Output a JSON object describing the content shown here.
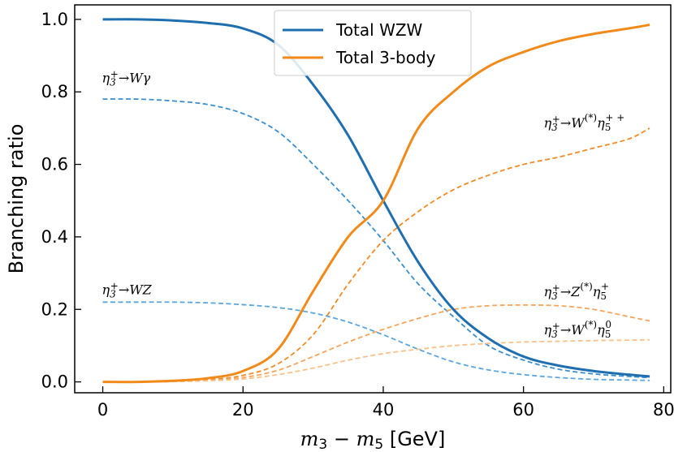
{
  "chart_data": {
    "type": "line",
    "xlabel": "m_3 − m_5 [GeV]",
    "ylabel": "Branching ratio",
    "xlim": [
      -4,
      81
    ],
    "ylim": [
      -0.03,
      1.04
    ],
    "xticks": [
      0,
      20,
      40,
      60,
      80
    ],
    "yticks": [
      0.0,
      0.2,
      0.4,
      0.6,
      0.8,
      1.0
    ],
    "ytick_labels": [
      "0.0",
      "0.2",
      "0.4",
      "0.6",
      "0.8",
      "1.0"
    ],
    "legend": {
      "placement": "top-center",
      "entries": [
        "Total WZW",
        "Total 3-body"
      ]
    },
    "x": [
      0,
      5,
      10,
      15,
      20,
      25,
      30,
      35,
      40,
      45,
      50,
      55,
      60,
      65,
      70,
      75,
      78
    ],
    "series": [
      {
        "name": "Total WZW",
        "color": "#1f6fb0",
        "style": "solid",
        "values": [
          1.0,
          1.0,
          0.997,
          0.99,
          0.975,
          0.93,
          0.82,
          0.68,
          0.5,
          0.33,
          0.2,
          0.12,
          0.07,
          0.045,
          0.03,
          0.02,
          0.015
        ]
      },
      {
        "name": "Total 3-body",
        "color": "#f28a1a",
        "style": "solid",
        "values": [
          0.0,
          0.0,
          0.003,
          0.01,
          0.03,
          0.09,
          0.25,
          0.4,
          0.5,
          0.7,
          0.8,
          0.87,
          0.91,
          0.94,
          0.96,
          0.975,
          0.985
        ]
      },
      {
        "name": "η3+ → Wγ",
        "color": "#3a8fd0",
        "style": "dashed",
        "values": [
          0.78,
          0.78,
          0.775,
          0.765,
          0.74,
          0.69,
          0.6,
          0.5,
          0.39,
          0.27,
          0.18,
          0.1,
          0.06,
          0.035,
          0.022,
          0.015,
          0.012
        ]
      },
      {
        "name": "η3+ → WZ",
        "color": "#5aa6df",
        "style": "dashed",
        "values": [
          0.22,
          0.22,
          0.22,
          0.218,
          0.213,
          0.205,
          0.19,
          0.165,
          0.13,
          0.09,
          0.055,
          0.033,
          0.02,
          0.012,
          0.007,
          0.005,
          0.004
        ]
      },
      {
        "name": "η3+ → W(*) η5++",
        "color": "#f08c28",
        "style": "dashed",
        "values": [
          0.0,
          0.0,
          0.002,
          0.006,
          0.018,
          0.05,
          0.13,
          0.27,
          0.39,
          0.47,
          0.53,
          0.57,
          0.6,
          0.62,
          0.645,
          0.67,
          0.7
        ]
      },
      {
        "name": "η3+ → Z(*) η5+",
        "color": "#f5a45a",
        "style": "dashed",
        "values": [
          0.0,
          0.0,
          0.001,
          0.004,
          0.012,
          0.032,
          0.07,
          0.11,
          0.145,
          0.175,
          0.2,
          0.21,
          0.212,
          0.21,
          0.2,
          0.18,
          0.168
        ]
      },
      {
        "name": "η3+ → W(*) η50",
        "color": "#f8c18a",
        "style": "dashed",
        "values": [
          0.0,
          0.0,
          0.001,
          0.003,
          0.008,
          0.02,
          0.038,
          0.06,
          0.078,
          0.09,
          0.1,
          0.106,
          0.11,
          0.112,
          0.114,
          0.115,
          0.116
        ]
      }
    ],
    "annotations": [
      {
        "base": "η",
        "sub": "3",
        "sup": "+",
        "arrow": "→",
        "rest": "Wγ",
        "x": 0,
        "y": 0.82
      },
      {
        "base": "η",
        "sub": "3",
        "sup": "+",
        "arrow": "→",
        "rest": "WZ",
        "x": 0,
        "y": 0.235
      },
      {
        "base": "η",
        "sub": "3",
        "sup": "+",
        "arrow": "→",
        "mid": "W",
        "midsup": "(*)",
        "base2": "η",
        "sub2": "5",
        "sup2": "+ +",
        "x": 63,
        "y": 0.695
      },
      {
        "base": "η",
        "sub": "3",
        "sup": "+",
        "arrow": "→",
        "mid": "Z",
        "midsup": "(*)",
        "base2": "η",
        "sub2": "5",
        "sup2": "+",
        "x": 63,
        "y": 0.23
      },
      {
        "base": "η",
        "sub": "3",
        "sup": "+",
        "arrow": "→",
        "mid": "W",
        "midsup": "(*)",
        "base2": "η",
        "sub2": "5",
        "sup2": "0",
        "x": 63,
        "y": 0.125
      }
    ]
  }
}
